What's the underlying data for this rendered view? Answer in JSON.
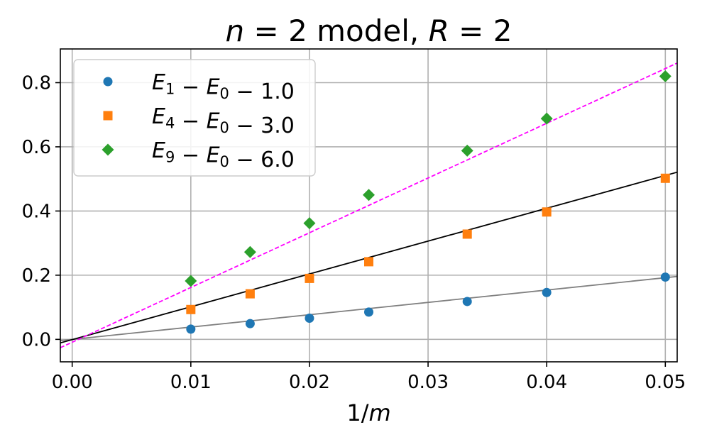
{
  "chart_data": {
    "type": "scatter",
    "title": "n = 2 model, R = 2",
    "xlabel": "1/m",
    "ylabel": "",
    "xlim": [
      -0.001,
      0.051
    ],
    "ylim": [
      -0.07,
      0.905
    ],
    "xticks": [
      0.0,
      0.01,
      0.02,
      0.03,
      0.04,
      0.05
    ],
    "xtick_labels": [
      "0.00",
      "0.01",
      "0.02",
      "0.03",
      "0.04",
      "0.05"
    ],
    "yticks": [
      0.0,
      0.2,
      0.4,
      0.6,
      0.8
    ],
    "ytick_labels": [
      "0.0",
      "0.2",
      "0.4",
      "0.6",
      "0.8"
    ],
    "grid": true,
    "legend_position": "top-left",
    "x": [
      0.01,
      0.015,
      0.02,
      0.025,
      0.0333,
      0.04,
      0.05
    ],
    "series": [
      {
        "name": "E1 − E0 − 1.0",
        "marker": "circle",
        "color": "#1f77b4",
        "values": [
          0.032,
          0.049,
          0.066,
          0.085,
          0.118,
          0.146,
          0.194
        ]
      },
      {
        "name": "E4 − E0 − 3.0",
        "marker": "square",
        "color": "#ff7f0e",
        "values": [
          0.093,
          0.142,
          0.19,
          0.242,
          0.328,
          0.397,
          0.502
        ]
      },
      {
        "name": "E9 − E0 − 6.0",
        "marker": "diamond",
        "color": "#2ca02c",
        "values": [
          0.182,
          0.272,
          0.362,
          0.45,
          0.588,
          0.688,
          0.82
        ]
      }
    ],
    "fit_lines": [
      {
        "color": "#808080",
        "dash": "solid",
        "y_at_xmin": -0.004,
        "y_at_xmax": 0.196
      },
      {
        "color": "#000000",
        "dash": "solid",
        "y_at_xmin": -0.011,
        "y_at_xmax": 0.521
      },
      {
        "color": "#ff00ff",
        "dash": "dashed",
        "y_at_xmin": -0.026,
        "y_at_xmax": 0.861
      }
    ]
  }
}
